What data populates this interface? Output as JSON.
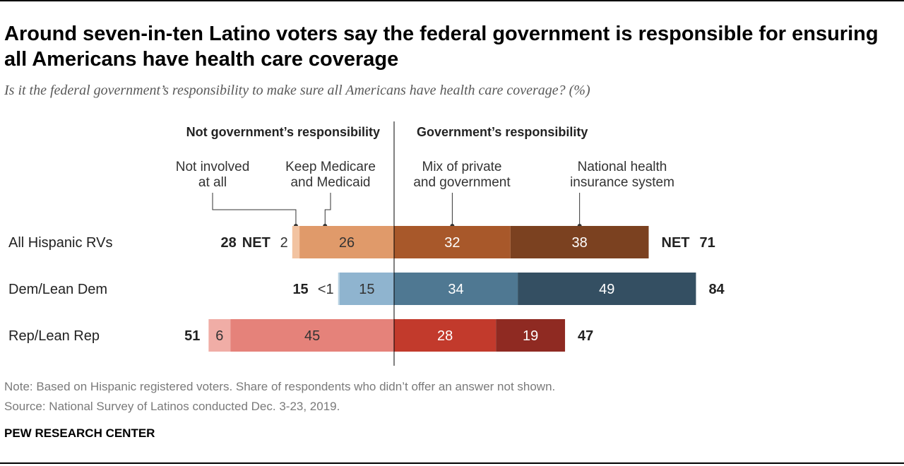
{
  "header": {
    "title": "Around seven-in-ten Latino voters say the federal government is responsible for ensuring all Americans have health care coverage",
    "subtitle": "Is it the federal government’s responsibility to make sure all Americans have health care coverage? (%)"
  },
  "footer": {
    "note": "Note: Based on Hispanic registered voters. Share of respondents who didn’t offer an answer not shown.",
    "source": "Source: National Survey of Latinos conducted Dec. 3-23, 2019.",
    "brand": "PEW RESEARCH CENTER"
  },
  "chart_data": {
    "type": "bar",
    "orientation": "horizontal-diverging",
    "groups": [
      {
        "label": "Not government’s responsibility",
        "side": "left"
      },
      {
        "label": "Government’s responsibility",
        "side": "right"
      }
    ],
    "segments": [
      {
        "key": "not_involved",
        "label_lines": [
          "Not involved",
          "at all"
        ],
        "side": "left"
      },
      {
        "key": "keep_medicare",
        "label_lines": [
          "Keep Medicare",
          "and Medicaid"
        ],
        "side": "left"
      },
      {
        "key": "mix",
        "label_lines": [
          "Mix of private",
          "and government"
        ],
        "side": "right"
      },
      {
        "key": "national",
        "label_lines": [
          "National health",
          "insurance system"
        ],
        "side": "right"
      }
    ],
    "rows": [
      {
        "category": "All Hispanic RVs",
        "values": {
          "not_involved": 2,
          "keep_medicare": 26,
          "mix": 32,
          "national": 38
        },
        "labels": {
          "not_involved": "2",
          "keep_medicare": "26",
          "mix": "32",
          "national": "38"
        },
        "net_left": 28,
        "net_right": 71,
        "show_net_word": true,
        "colors": {
          "not_involved": "#f2c3a1",
          "keep_medicare": "#e09a6a",
          "mix": "#a8582a",
          "national": "#7b4120"
        }
      },
      {
        "category": "Dem/Lean Dem",
        "values": {
          "not_involved": 0.4,
          "keep_medicare": 15,
          "mix": 34,
          "national": 49
        },
        "labels": {
          "not_involved": "<1",
          "keep_medicare": "15",
          "mix": "34",
          "national": "49"
        },
        "net_left": 15,
        "net_right": 84,
        "show_net_word": false,
        "colors": {
          "not_involved": "#b9d2e2",
          "keep_medicare": "#8fb4cf",
          "mix": "#4f7892",
          "national": "#344f62"
        }
      },
      {
        "category": "Rep/Lean Rep",
        "values": {
          "not_involved": 6,
          "keep_medicare": 45,
          "mix": 28,
          "national": 19
        },
        "labels": {
          "not_involved": "6",
          "keep_medicare": "45",
          "mix": "28",
          "national": "19"
        },
        "net_left": 51,
        "net_right": 47,
        "show_net_word": false,
        "colors": {
          "not_involved": "#f0ada6",
          "keep_medicare": "#e5827a",
          "mix": "#c23a2c",
          "national": "#8f2a22"
        }
      }
    ],
    "net_word": "NET",
    "unit": "%"
  }
}
